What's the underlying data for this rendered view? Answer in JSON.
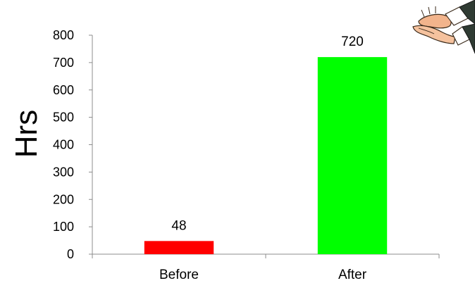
{
  "chart_data": {
    "type": "bar",
    "categories": [
      "Before",
      "After"
    ],
    "values": [
      48,
      720
    ],
    "bar_colors": [
      "#ff0000",
      "#00ff00"
    ],
    "data_labels": [
      "48",
      "720"
    ],
    "ylabel": "Hrs",
    "xlabel": "",
    "title": "",
    "ylim": [
      0,
      800
    ],
    "y_ticks": [
      0,
      100,
      200,
      300,
      400,
      500,
      600,
      700,
      800
    ],
    "grid": false,
    "legend": "none"
  },
  "decoration": {
    "image": "clapping-hands-icon"
  }
}
